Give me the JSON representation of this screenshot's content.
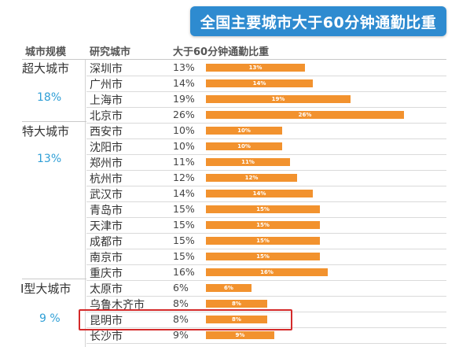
{
  "header": {
    "title": "全国主要城市大于60分钟通勤比重",
    "col_scale": "城市规模",
    "col_city": "研究城市",
    "col_ratio": "大于60分钟通勤比重"
  },
  "groups": [
    {
      "name": "超大城市",
      "share": "18%"
    },
    {
      "name": "特大城市",
      "share": "13%"
    },
    {
      "name": "Ⅰ型大城市",
      "share": "9 %"
    }
  ],
  "chart_data": {
    "type": "bar",
    "orientation": "horizontal",
    "title": "全国主要城市大于60分钟通勤比重",
    "categories": [
      "深圳市",
      "广州市",
      "上海市",
      "北京市",
      "西安市",
      "沈阳市",
      "郑州市",
      "杭州市",
      "武汉市",
      "青岛市",
      "天津市",
      "成都市",
      "南京市",
      "重庆市",
      "太原市",
      "乌鲁木齐市",
      "昆明市",
      "长沙市"
    ],
    "values": [
      13,
      14,
      19,
      26,
      10,
      10,
      11,
      12,
      14,
      15,
      15,
      15,
      15,
      16,
      6,
      8,
      8,
      9
    ],
    "value_labels": [
      "13%",
      "14%",
      "19%",
      "26%",
      "10%",
      "10%",
      "11%",
      "12%",
      "14%",
      "15%",
      "15%",
      "15%",
      "15%",
      "16%",
      "6%",
      "8%",
      "8%",
      "9%"
    ],
    "unit": "%",
    "bar_color": "#f2922e",
    "highlighted_category": "昆明市"
  },
  "colors": {
    "title_bg": "#2e8bd0",
    "bar": "#f2922e",
    "share_text": "#2f9fd6",
    "highlight_border": "#d42a2a"
  }
}
